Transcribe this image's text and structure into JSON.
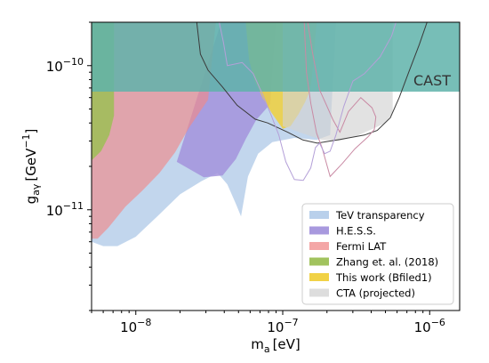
{
  "chart_data": {
    "type": "area",
    "xlabel": "m",
    "xlabel_sub": "a",
    "xlabel_unit": "[eV]",
    "ylabel": "g",
    "ylabel_sub": "aγ",
    "ylabel_unit": "[GeV",
    "ylabel_unit_exp": "−1",
    "ylabel_unit_close": "]",
    "x_scale": "log",
    "y_scale": "log",
    "xlim": [
      5e-09,
      1.6e-06
    ],
    "ylim": [
      2e-12,
      2e-10
    ],
    "grid": false,
    "legend_position": "lower-right",
    "x_ticks": [
      {
        "value": 1e-08,
        "base": "10",
        "exp": "−8"
      },
      {
        "value": 1e-07,
        "base": "10",
        "exp": "−7"
      },
      {
        "value": 1e-06,
        "base": "10",
        "exp": "−6"
      }
    ],
    "y_ticks": [
      {
        "value": 1e-11,
        "base": "10",
        "exp": "−11"
      },
      {
        "value": 1e-10,
        "base": "10",
        "exp": "−10"
      }
    ],
    "series": [
      {
        "name": "TeV transparency",
        "color": "#a8c4e6",
        "opacity": 0.7,
        "boundary": [
          [
            5e-09,
            2e-10
          ],
          [
            5e-09,
            6e-12
          ],
          [
            6e-09,
            5.6e-12
          ],
          [
            7.5e-09,
            5.6e-12
          ],
          [
            1e-08,
            6.5e-12
          ],
          [
            1.4e-08,
            9e-12
          ],
          [
            2e-08,
            1.28e-11
          ],
          [
            2.8e-08,
            1.58e-11
          ],
          [
            3.6e-08,
            1.8e-11
          ],
          [
            4.2e-08,
            1.5e-11
          ],
          [
            4.8e-08,
            1.1e-11
          ],
          [
            5.2e-08,
            9e-12
          ],
          [
            5.8e-08,
            1.7e-11
          ],
          [
            6.8e-08,
            2.45e-11
          ],
          [
            8.5e-08,
            2.95e-11
          ],
          [
            1.2e-07,
            3.15e-11
          ],
          [
            1.7e-07,
            3.05e-11
          ],
          [
            2.1e-07,
            3.3e-11
          ],
          [
            2.3e-07,
            2e-10
          ]
        ]
      },
      {
        "name": "H.E.S.S.",
        "color": "#a393dc",
        "opacity": 0.85,
        "boundary": [
          [
            3.8e-08,
            2e-10
          ],
          [
            1.9e-08,
            2.15e-11
          ],
          [
            2.9e-08,
            1.68e-11
          ],
          [
            3.9e-08,
            1.73e-11
          ],
          [
            4.8e-08,
            2.25e-11
          ],
          [
            5.6e-08,
            3.1e-11
          ],
          [
            6.6e-08,
            4.2e-11
          ],
          [
            8.2e-08,
            5.4e-11
          ],
          [
            9e-08,
            2e-10
          ]
        ]
      },
      {
        "name": "Fermi LAT",
        "color": "#f08888",
        "opacity": 0.65,
        "boundary": [
          [
            5e-09,
            6.3e-12
          ],
          [
            5.5e-09,
            6.3e-12
          ],
          [
            6.5e-09,
            7.5e-12
          ],
          [
            8.5e-09,
            1.05e-11
          ],
          [
            1.1e-08,
            1.35e-11
          ],
          [
            1.45e-08,
            1.8e-11
          ],
          [
            1.85e-08,
            2.5e-11
          ],
          [
            2.3e-08,
            3.7e-11
          ],
          [
            3.1e-08,
            5.8e-11
          ],
          [
            3.5e-08,
            2e-10
          ],
          [
            5e-09,
            2e-10
          ]
        ]
      },
      {
        "name": "Zhang et. al. (2018)",
        "color": "#9cc055",
        "opacity": 0.85,
        "boundary": [
          [
            5e-09,
            2.2e-11
          ],
          [
            5.8e-09,
            2.55e-11
          ],
          [
            6.6e-09,
            3.3e-11
          ],
          [
            7.1e-09,
            4.5e-11
          ],
          [
            7.1e-09,
            2e-10
          ],
          [
            5e-09,
            2e-10
          ]
        ]
      },
      {
        "name": "This work (Bfiled1)",
        "color": "#f0d03c",
        "opacity": 0.85,
        "boundary": [
          [
            5.6e-08,
            2e-10
          ],
          [
            5.9e-08,
            1.1e-10
          ],
          [
            6.4e-08,
            8e-11
          ],
          [
            7.3e-08,
            6e-11
          ],
          [
            8.4e-08,
            4.7e-11
          ],
          [
            1e-07,
            3.65e-11
          ],
          [
            1.13e-07,
            3.8e-11
          ],
          [
            1.28e-07,
            4.6e-11
          ],
          [
            1.42e-07,
            5.6e-11
          ],
          [
            1.52e-07,
            6.6e-11
          ],
          [
            1.58e-07,
            8.2e-11
          ],
          [
            1.62e-07,
            1.1e-10
          ],
          [
            1.7e-07,
            2e-10
          ]
        ]
      },
      {
        "name": "CTA (projected)",
        "color": "#d2d2d2",
        "opacity": 0.65,
        "boundary": [
          [
            1e-07,
            2e-10
          ],
          [
            1e-07,
            3.8e-11
          ],
          [
            1.3e-07,
            3.45e-11
          ],
          [
            1.85e-07,
            3.05e-11
          ],
          [
            2.4e-07,
            3e-11
          ],
          [
            3.2e-07,
            3.25e-11
          ],
          [
            4.1e-07,
            3.65e-11
          ],
          [
            5e-07,
            4e-11
          ],
          [
            5.6e-07,
            4.7e-11
          ],
          [
            5.6e-07,
            2e-10
          ]
        ]
      }
    ],
    "band": {
      "label": "CAST",
      "color": "#5fb3aa",
      "opacity": 0.85,
      "ymin": 6.6e-11,
      "ymax": 2e-10
    },
    "outlines": [
      {
        "name": "outline-dark",
        "color": "#3a3a3a",
        "points": [
          [
            2.6e-08,
            2e-10
          ],
          [
            2.75e-08,
            1.2e-10
          ],
          [
            3.1e-08,
            9.3e-11
          ],
          [
            3.9e-08,
            7.1e-11
          ],
          [
            4.9e-08,
            5.3e-11
          ],
          [
            6.5e-08,
            4.25e-11
          ],
          [
            7.9e-08,
            4e-11
          ],
          [
            1.08e-07,
            3.45e-11
          ],
          [
            1.37e-07,
            3.05e-11
          ],
          [
            1.72e-07,
            2.9e-11
          ],
          [
            2.35e-07,
            3.05e-11
          ],
          [
            3.6e-07,
            3.3e-11
          ],
          [
            4.4e-07,
            3.55e-11
          ],
          [
            5.4e-07,
            4.35e-11
          ],
          [
            6.2e-07,
            6e-11
          ],
          [
            7.2e-07,
            9e-11
          ],
          [
            8.5e-07,
            1.4e-10
          ],
          [
            9.6e-07,
            2e-10
          ]
        ]
      },
      {
        "name": "outline-pink",
        "color": "#c98aa4",
        "points": [
          [
            1.48e-07,
            2e-10
          ],
          [
            1.58e-07,
            1.3e-10
          ],
          [
            1.78e-07,
            6.8e-11
          ],
          [
            1.97e-07,
            5.4e-11
          ],
          [
            2.2e-07,
            4.2e-11
          ],
          [
            2.45e-07,
            3.45e-11
          ],
          [
            2.8e-07,
            4.8e-11
          ],
          [
            3.4e-07,
            6e-11
          ],
          [
            4.05e-07,
            5.1e-11
          ],
          [
            4.3e-07,
            4.4e-11
          ],
          [
            4.2e-07,
            3.6e-11
          ],
          [
            3.8e-07,
            3.2e-11
          ],
          [
            3.1e-07,
            2.65e-11
          ],
          [
            2.55e-07,
            2.1e-11
          ],
          [
            2.1e-07,
            1.7e-11
          ],
          [
            1.85e-07,
            2.7e-11
          ],
          [
            1.7e-07,
            3.4e-11
          ],
          [
            1.55e-07,
            5.5e-11
          ],
          [
            1.45e-07,
            9e-11
          ],
          [
            1.4e-07,
            2e-10
          ]
        ]
      },
      {
        "name": "outline-lavender",
        "color": "#b4a0d8",
        "points": [
          [
            3.7e-08,
            2e-10
          ],
          [
            3.95e-08,
            1.45e-10
          ],
          [
            4.2e-08,
            1e-10
          ],
          [
            5.3e-08,
            1.05e-10
          ],
          [
            6.3e-08,
            8.8e-11
          ],
          [
            7.3e-08,
            6.3e-11
          ],
          [
            8.3e-08,
            4.6e-11
          ],
          [
            9.4e-08,
            3.3e-11
          ],
          [
            1.05e-07,
            2.15e-11
          ],
          [
            1.2e-07,
            1.62e-11
          ],
          [
            1.38e-07,
            1.6e-11
          ],
          [
            1.55e-07,
            1.95e-11
          ],
          [
            1.67e-07,
            2.7e-11
          ],
          [
            1.78e-07,
            2.9e-11
          ],
          [
            1.93e-07,
            2.45e-11
          ],
          [
            2.1e-07,
            2.55e-11
          ],
          [
            2.3e-07,
            3.3e-11
          ],
          [
            2.6e-07,
            5.2e-11
          ],
          [
            3e-07,
            7.8e-11
          ],
          [
            3.6e-07,
            8.8e-11
          ],
          [
            4.6e-07,
            1.15e-10
          ],
          [
            5.5e-07,
            1.6e-10
          ],
          [
            5.9e-07,
            2e-10
          ]
        ]
      }
    ]
  }
}
